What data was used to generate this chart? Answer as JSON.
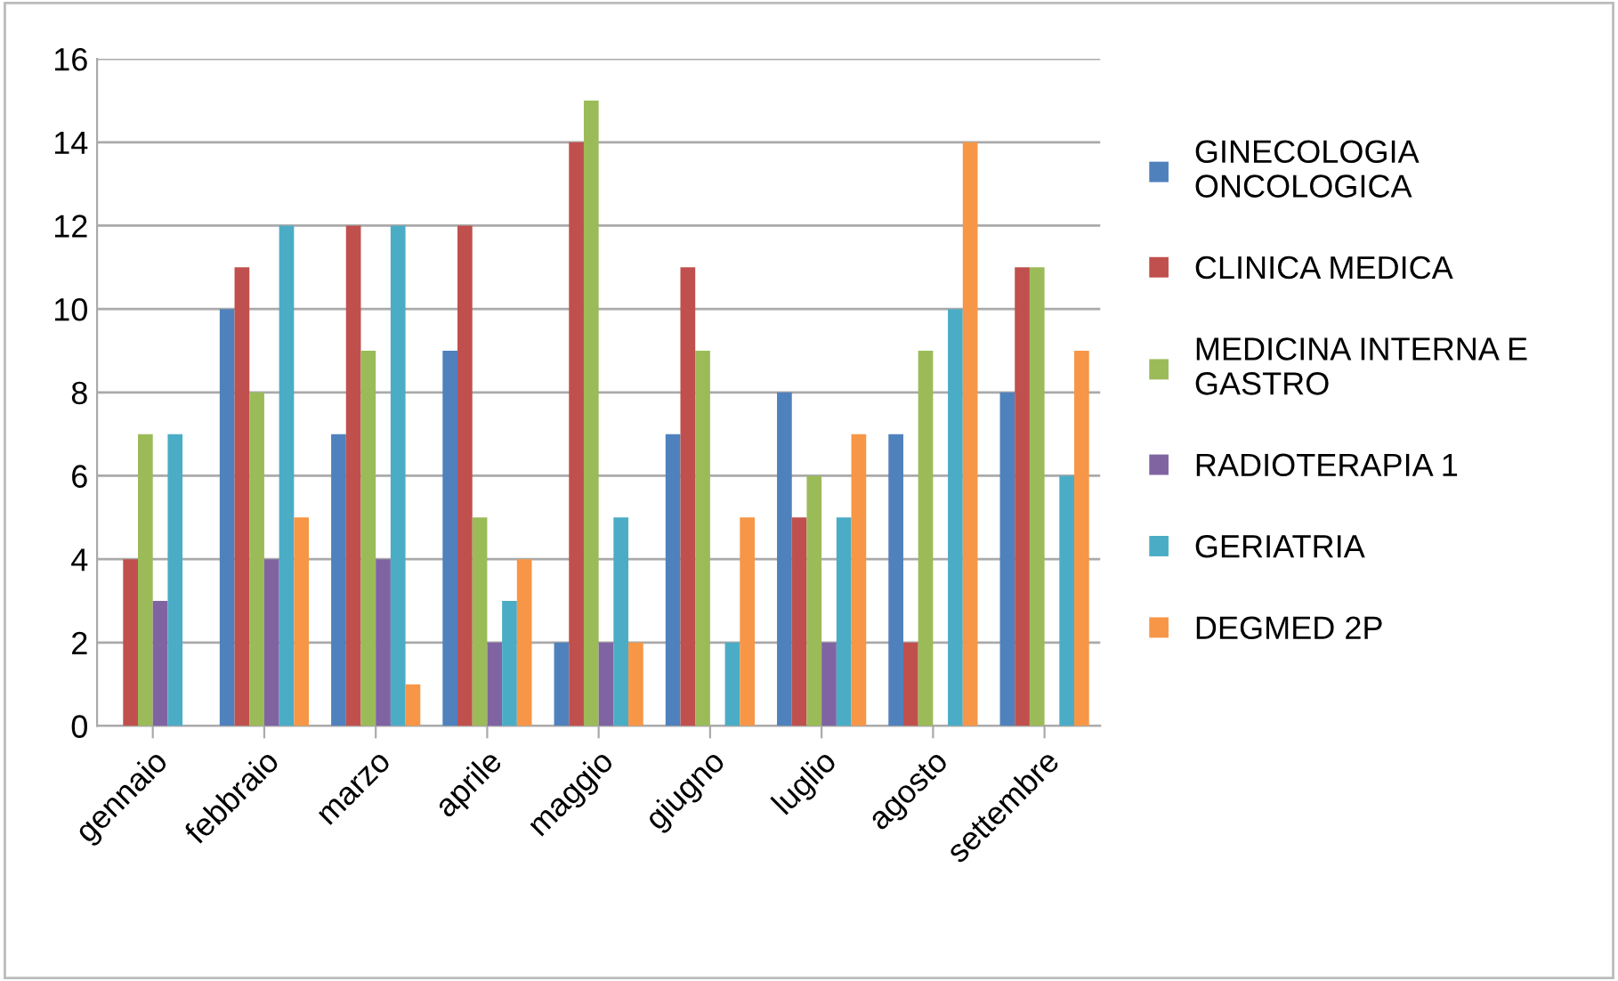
{
  "chart_data": {
    "type": "bar",
    "categories": [
      "gennaio",
      "febbraio",
      "marzo",
      "aprile",
      "maggio",
      "giugno",
      "luglio",
      "agosto",
      "settembre"
    ],
    "series": [
      {
        "name": "GINECOLOGIA\nONCOLOGICA",
        "color": "#4f81bd",
        "values": [
          0,
          10,
          7,
          9,
          2,
          7,
          8,
          7,
          8
        ]
      },
      {
        "name": "CLINICA MEDICA",
        "color": "#c0504d",
        "values": [
          4,
          11,
          12,
          12,
          14,
          11,
          5,
          2,
          11
        ]
      },
      {
        "name": "MEDICINA INTERNA E\nGASTRO",
        "color": "#9bbb59",
        "values": [
          7,
          8,
          9,
          5,
          15,
          9,
          6,
          9,
          11
        ]
      },
      {
        "name": "RADIOTERAPIA 1",
        "color": "#8064a2",
        "values": [
          3,
          4,
          4,
          2,
          2,
          0,
          2,
          0,
          0
        ]
      },
      {
        "name": "GERIATRIA",
        "color": "#4bacc6",
        "values": [
          7,
          12,
          12,
          3,
          5,
          2,
          5,
          10,
          6
        ]
      },
      {
        "name": "DEGMED 2P",
        "color": "#f79646",
        "values": [
          0,
          5,
          1,
          4,
          2,
          5,
          7,
          14,
          9
        ]
      }
    ],
    "ylim": [
      0,
      16
    ],
    "yticks": [
      0,
      2,
      4,
      6,
      8,
      10,
      12,
      14,
      16
    ],
    "grid": "y",
    "legend": "right"
  }
}
